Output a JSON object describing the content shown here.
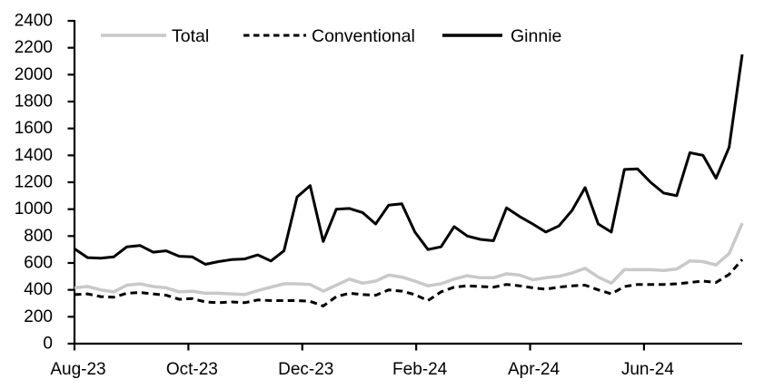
{
  "chart_data": {
    "type": "line",
    "title": "",
    "legend_position": "top",
    "grid": false,
    "colors": {
      "total_gray": "#c9c9c9",
      "line_black": "#000000",
      "axis": "#000000"
    },
    "x_axis": {
      "label": "",
      "unit": "weekly",
      "n_points": 52,
      "tick_labels": [
        "Aug-23",
        "Oct-23",
        "Dec-23",
        "Feb-24",
        "Apr-24",
        "Jun-24"
      ],
      "tick_positions": [
        0,
        8.7,
        17.4,
        26.1,
        34.8,
        43.5
      ]
    },
    "y_axis": {
      "label": "",
      "min": 0,
      "max": 2400,
      "step": 200,
      "tick_labels": [
        "0",
        "200",
        "400",
        "600",
        "800",
        "1000",
        "1200",
        "1400",
        "1600",
        "1800",
        "2000",
        "2200",
        "2400"
      ]
    },
    "series": [
      {
        "name": "Total",
        "color": "#c9c9c9",
        "dash": "solid",
        "width": 3.5,
        "values": [
          415,
          425,
          400,
          385,
          435,
          445,
          425,
          415,
          385,
          390,
          375,
          375,
          370,
          365,
          395,
          420,
          445,
          445,
          440,
          390,
          435,
          480,
          450,
          465,
          510,
          495,
          465,
          430,
          445,
          480,
          505,
          490,
          490,
          520,
          510,
          475,
          490,
          500,
          525,
          560,
          495,
          450,
          550,
          550,
          550,
          545,
          555,
          615,
          610,
          585,
          670,
          895
        ]
      },
      {
        "name": "Conventional",
        "color": "#000000",
        "dash": "dashed",
        "width": 3,
        "values": [
          365,
          370,
          350,
          345,
          375,
          380,
          370,
          360,
          330,
          335,
          310,
          305,
          310,
          305,
          325,
          320,
          320,
          320,
          315,
          280,
          350,
          375,
          365,
          360,
          400,
          390,
          365,
          320,
          385,
          420,
          430,
          425,
          420,
          440,
          430,
          415,
          405,
          420,
          430,
          435,
          400,
          370,
          425,
          440,
          440,
          440,
          445,
          455,
          465,
          455,
          515,
          625
        ]
      },
      {
        "name": "Ginnie",
        "color": "#000000",
        "dash": "solid",
        "width": 3,
        "values": [
          705,
          640,
          635,
          645,
          720,
          730,
          680,
          690,
          650,
          645,
          590,
          610,
          625,
          630,
          660,
          615,
          690,
          1090,
          1175,
          760,
          1000,
          1005,
          975,
          890,
          1030,
          1040,
          830,
          700,
          720,
          870,
          800,
          775,
          765,
          1010,
          945,
          890,
          830,
          875,
          990,
          1160,
          890,
          830,
          1295,
          1300,
          1200,
          1120,
          1100,
          1420,
          1400,
          1230,
          1460,
          2150
        ]
      }
    ]
  }
}
